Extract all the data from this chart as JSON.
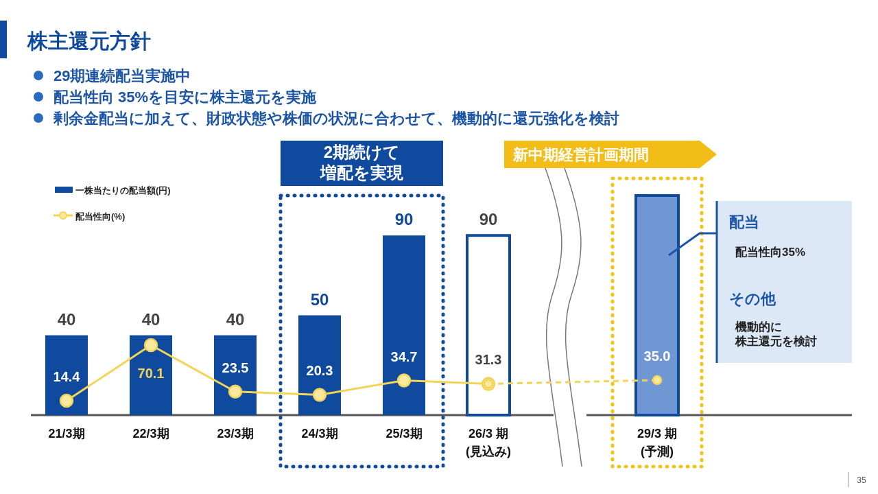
{
  "chart_data": {
    "type": "bar",
    "title": "株主還元方針",
    "categories": [
      "21/3期",
      "22/3期",
      "23/3期",
      "24/3期",
      "25/3期",
      "26/3 期\n(見込み)",
      null,
      "29/3 期\n(予測)"
    ],
    "series": [
      {
        "name": "一株当たりの配当額(円)",
        "color": "#0f4a9e",
        "colors": [
          "#0f4a9e",
          "#0f4a9e",
          "#0f4a9e",
          "#0f4a9e",
          "#0f4a9e",
          "#ffffff",
          null,
          "#6f97d4"
        ],
        "values": [
          40,
          40,
          40,
          50,
          90,
          90,
          null,
          110
        ],
        "value_labels": [
          "40",
          "40",
          "40",
          "50",
          "90",
          "90",
          null,
          null
        ]
      },
      {
        "name": "配当性向(%)",
        "type": "line",
        "axis": "y2",
        "color": "#f2d456",
        "line_style": "solid",
        "marker": "circle",
        "values": [
          14.4,
          70.1,
          23.5,
          20.3,
          34.7,
          31.3,
          null,
          null
        ],
        "value_labels": [
          "14.4",
          "70.1",
          "23.5",
          "20.3",
          "34.7",
          "31.3",
          null,
          null
        ]
      },
      {
        "type": "line",
        "axis": "y2",
        "color": "#f2d456",
        "line_style": "dashed",
        "marker": "circle",
        "values": [
          null,
          null,
          null,
          null,
          null,
          31.3,
          null,
          35.0
        ],
        "value_labels": [
          null,
          null,
          null,
          null,
          null,
          null,
          null,
          "35.0"
        ]
      }
    ],
    "tick_labels": "x",
    "legend": "top left",
    "annotations": [
      "29期連続配当実施中",
      "配当性向 35%を目安に株主還元を実施",
      "剰余金配当に加えて、財政状態や株価の状況に合わせて、機動的に還元強化を検討",
      "2期続けて",
      "増配を実現",
      "新中期経営計画期間",
      "配当",
      "配当性向35%",
      "その他",
      "機動的に",
      "株主還元を検討",
      "35"
    ]
  }
}
